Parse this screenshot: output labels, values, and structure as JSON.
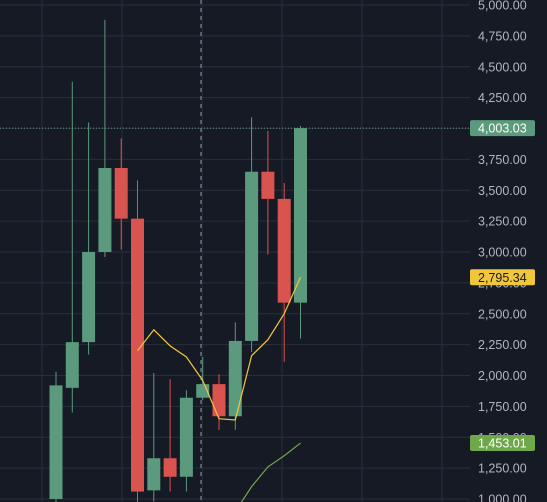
{
  "chart_data": {
    "type": "candlestick",
    "title": "",
    "xlabel": "",
    "ylabel": "",
    "ylim": [
      1000,
      5000
    ],
    "grid": true,
    "y_ticks": [
      "5,000.00",
      "4,750.00",
      "4,500.00",
      "4,250.00",
      "4,000.00",
      "3,750.00",
      "3,500.00",
      "3,250.00",
      "3,000.00",
      "2,750.00",
      "2,500.00",
      "2,250.00",
      "2,000.00",
      "1,750.00",
      "1,500.00",
      "1,250.00",
      "1,000.00"
    ],
    "y_tick_values": [
      5000,
      4750,
      4500,
      4250,
      4000,
      3750,
      3500,
      3250,
      3000,
      2750,
      2500,
      2250,
      2000,
      1750,
      1500,
      1250,
      1000
    ],
    "candles": [
      {
        "open": 1000,
        "high": 2030,
        "low": 950,
        "close": 1920
      },
      {
        "open": 1900,
        "high": 4380,
        "low": 1700,
        "close": 2270
      },
      {
        "open": 2270,
        "high": 4050,
        "low": 2170,
        "close": 3000
      },
      {
        "open": 3000,
        "high": 4880,
        "low": 2960,
        "close": 3680
      },
      {
        "open": 3680,
        "high": 3920,
        "low": 3020,
        "close": 3270
      },
      {
        "open": 3270,
        "high": 3580,
        "low": 950,
        "close": 1060
      },
      {
        "open": 1070,
        "high": 2020,
        "low": 980,
        "close": 1330
      },
      {
        "open": 1330,
        "high": 1970,
        "low": 1060,
        "close": 1180
      },
      {
        "open": 1180,
        "high": 1880,
        "low": 1060,
        "close": 1820
      },
      {
        "open": 1820,
        "high": 2150,
        "low": 1800,
        "close": 1930
      },
      {
        "open": 1930,
        "high": 2010,
        "low": 1560,
        "close": 1670
      },
      {
        "open": 1670,
        "high": 2430,
        "low": 1560,
        "close": 2280
      },
      {
        "open": 2280,
        "high": 4090,
        "low": 2190,
        "close": 3650
      },
      {
        "open": 3650,
        "high": 3980,
        "low": 2980,
        "close": 3430
      },
      {
        "open": 3430,
        "high": 3560,
        "low": 2110,
        "close": 2590
      },
      {
        "open": 2590,
        "high": 4020,
        "low": 2300,
        "close": 4003.03
      }
    ],
    "series": [
      {
        "values": [
          null,
          null,
          null,
          null,
          null,
          2200,
          2370,
          2240,
          2150,
          1960,
          1650,
          1640,
          2160,
          2290,
          2500,
          2795.34
        ],
        "color": "#f0c63c"
      },
      {
        "values": [
          null,
          null,
          null,
          null,
          null,
          null,
          null,
          null,
          null,
          null,
          null,
          900,
          1100,
          1260,
          1350,
          1453.01
        ],
        "color": "#6fa84a"
      }
    ],
    "price_tags": [
      {
        "label": "4,003.03",
        "value": 4003.03,
        "color": "#5b9a7c",
        "text_color": "#ffffff"
      },
      {
        "label": "2,795.34",
        "value": 2795.34,
        "color": "#f0c63c",
        "text_color": "#1a1a1a"
      },
      {
        "label": "1,453.01",
        "value": 1453.01,
        "color": "#6fa84a",
        "text_color": "#ffffff"
      }
    ],
    "current_price_line": 4003.03,
    "colors": {
      "background": "#161a25",
      "grid": "#2a2e3b",
      "up": "#5b9a7c",
      "down": "#d9534f",
      "axis_text": "#b2b5be"
    }
  }
}
